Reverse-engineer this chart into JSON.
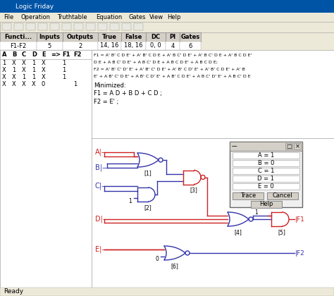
{
  "title": "Logic Friday",
  "menu_items": [
    "File",
    "Operation",
    "Truthtable",
    "Equation",
    "Gates",
    "View",
    "Help"
  ],
  "table_headers": [
    "Functi...",
    "Inputs",
    "Outputs",
    "True",
    "False",
    "DC",
    "PI",
    "Gates"
  ],
  "table_row": [
    "F1-F2",
    "5",
    "2",
    "14, 16",
    "18, 16",
    "0, 0",
    "4",
    "6"
  ],
  "col_headers": [
    "A",
    "B",
    "C",
    "D",
    "E",
    "=>",
    "F1",
    "F2"
  ],
  "truth_rows": [
    [
      "1",
      "X",
      "X",
      "1",
      "X",
      "",
      "1",
      ""
    ],
    [
      "X",
      "1",
      "X",
      "1",
      "X",
      "",
      "1",
      ""
    ],
    [
      "X",
      "X",
      "1",
      "1",
      "X",
      "",
      "1",
      ""
    ],
    [
      "X",
      "X",
      "X",
      "X",
      "0",
      "",
      "",
      "1"
    ]
  ],
  "bg_color": "#ECE9D8",
  "white": "#ffffff",
  "circuit_bg": "#ffffff",
  "wire_red": "#cc2222",
  "wire_blue": "#3333aa",
  "gate_blue": "#3333aa",
  "gate_red": "#cc2222",
  "status_bar": "Ready",
  "dlg_vars": [
    "A = 1",
    "B = 0",
    "C = 1",
    "D = 1",
    "E = 0"
  ]
}
